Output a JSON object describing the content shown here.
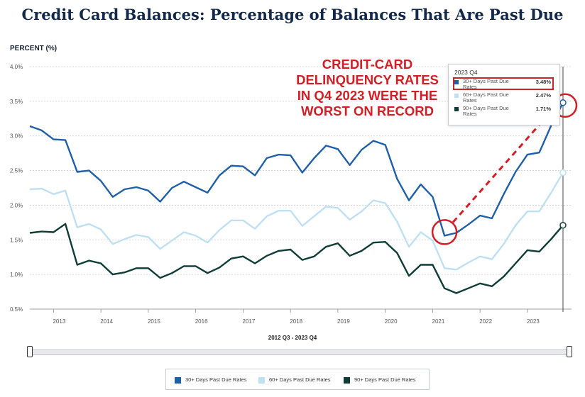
{
  "title": "Credit Card Balances: Percentage of Balances That Are Past Due",
  "colors": {
    "s30": "#1f5fa8",
    "s60": "#bfe0f2",
    "s90": "#0f3d36",
    "red": "#d21f26"
  },
  "callout": "CREDIT-CARD DELINQUENCY RATES IN Q4 2023 WERE THE WORST ON RECORD",
  "tooltip": {
    "header": "2023 Q4",
    "rows": [
      {
        "name": "30+ Days Past Due Rates",
        "value": "3.48%"
      },
      {
        "name": "60+ Days Past Due Rates",
        "value": "2.47%"
      },
      {
        "name": "90+ Days Past Due Rates",
        "value": "1.71%"
      }
    ]
  },
  "range_label": "2012 Q3 - 2023 Q4",
  "chart_data": {
    "type": "line",
    "title": "Credit Card Balances: Percentage of Balances That Are Past Due",
    "ylabel": "PERCENT (%)",
    "xlabel": "",
    "ylim": [
      0.5,
      4.0
    ],
    "y_ticks": [
      "0.5%",
      "1.0%",
      "1.5%",
      "2.0%",
      "2.5%",
      "3.0%",
      "3.5%",
      "4.0%"
    ],
    "x_ticks": [
      "2013",
      "2014",
      "2015",
      "2016",
      "2017",
      "2018",
      "2019",
      "2020",
      "2021",
      "2022",
      "2023"
    ],
    "x": [
      "2012 Q3",
      "2012 Q4",
      "2013 Q1",
      "2013 Q2",
      "2013 Q3",
      "2013 Q4",
      "2014 Q1",
      "2014 Q2",
      "2014 Q3",
      "2014 Q4",
      "2015 Q1",
      "2015 Q2",
      "2015 Q3",
      "2015 Q4",
      "2016 Q1",
      "2016 Q2",
      "2016 Q3",
      "2016 Q4",
      "2017 Q1",
      "2017 Q2",
      "2017 Q3",
      "2017 Q4",
      "2018 Q1",
      "2018 Q2",
      "2018 Q3",
      "2018 Q4",
      "2019 Q1",
      "2019 Q2",
      "2019 Q3",
      "2019 Q4",
      "2020 Q1",
      "2020 Q2",
      "2020 Q3",
      "2020 Q4",
      "2021 Q1",
      "2021 Q2",
      "2021 Q3",
      "2021 Q4",
      "2022 Q1",
      "2022 Q2",
      "2022 Q3",
      "2022 Q4",
      "2023 Q1",
      "2023 Q2",
      "2023 Q3",
      "2023 Q4"
    ],
    "series": [
      {
        "name": "30+ Days Past Due Rates",
        "values": [
          3.14,
          3.08,
          2.95,
          2.94,
          2.48,
          2.5,
          2.35,
          2.12,
          2.23,
          2.26,
          2.21,
          2.05,
          2.25,
          2.34,
          2.26,
          2.18,
          2.43,
          2.57,
          2.56,
          2.43,
          2.68,
          2.73,
          2.72,
          2.47,
          2.68,
          2.86,
          2.81,
          2.58,
          2.8,
          2.93,
          2.87,
          2.38,
          2.07,
          2.3,
          2.12,
          1.56,
          1.6,
          1.72,
          1.85,
          1.81,
          2.16,
          2.48,
          2.73,
          2.76,
          3.15,
          3.48
        ]
      },
      {
        "name": "60+ Days Past Due Rates",
        "values": [
          2.23,
          2.24,
          2.16,
          2.21,
          1.68,
          1.73,
          1.65,
          1.44,
          1.51,
          1.57,
          1.54,
          1.37,
          1.49,
          1.61,
          1.56,
          1.46,
          1.64,
          1.78,
          1.78,
          1.66,
          1.84,
          1.92,
          1.92,
          1.7,
          1.84,
          1.98,
          1.96,
          1.79,
          1.91,
          2.07,
          2.03,
          1.76,
          1.4,
          1.61,
          1.49,
          1.09,
          1.07,
          1.17,
          1.26,
          1.22,
          1.44,
          1.71,
          1.91,
          1.91,
          2.18,
          2.47
        ]
      },
      {
        "name": "90+ Days Past Due Rates",
        "values": [
          1.6,
          1.62,
          1.61,
          1.73,
          1.14,
          1.2,
          1.16,
          1.0,
          1.03,
          1.09,
          1.09,
          0.95,
          1.02,
          1.12,
          1.12,
          1.02,
          1.1,
          1.23,
          1.26,
          1.16,
          1.27,
          1.34,
          1.36,
          1.21,
          1.26,
          1.4,
          1.45,
          1.27,
          1.34,
          1.46,
          1.47,
          1.31,
          0.98,
          1.14,
          1.14,
          0.8,
          0.73,
          0.8,
          0.87,
          0.83,
          0.97,
          1.16,
          1.35,
          1.33,
          1.51,
          1.71
        ]
      }
    ],
    "legend": "bottom",
    "grid": true
  }
}
